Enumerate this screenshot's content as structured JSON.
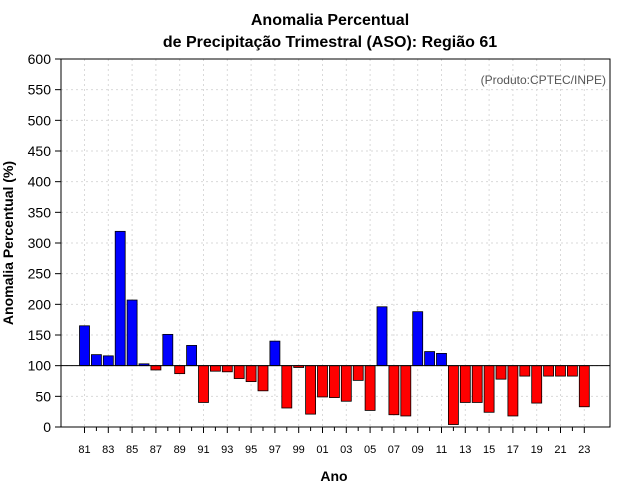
{
  "chart_data": {
    "type": "bar",
    "title": "Anomalia Percentual",
    "subtitle": "de Precipitação Trimestral (ASO): Região 61",
    "xlabel": "Ano",
    "ylabel": "Anomalia Percentual (%)",
    "annotation": "(Produto:CPTEC/INPE)",
    "ylim": [
      0,
      600
    ],
    "yticks": [
      0,
      50,
      100,
      150,
      200,
      250,
      300,
      350,
      400,
      450,
      500,
      550,
      600
    ],
    "baseline": 100,
    "grid": true,
    "colors": {
      "above": "#0000ff",
      "below": "#ff0000",
      "edge": "#000000",
      "grid": "#d9d9d9"
    },
    "categories": [
      "81",
      "82",
      "83",
      "84",
      "85",
      "86",
      "87",
      "88",
      "89",
      "90",
      "91",
      "92",
      "93",
      "94",
      "95",
      "96",
      "97",
      "98",
      "99",
      "00",
      "01",
      "02",
      "03",
      "04",
      "05",
      "06",
      "07",
      "08",
      "09",
      "10",
      "11",
      "12",
      "13",
      "14",
      "15",
      "16",
      "17",
      "18",
      "19",
      "20",
      "21",
      "22",
      "23"
    ],
    "tick_labels": [
      "81",
      "83",
      "85",
      "87",
      "89",
      "91",
      "93",
      "95",
      "97",
      "99",
      "01",
      "03",
      "05",
      "07",
      "09",
      "11",
      "13",
      "15",
      "17",
      "19",
      "21",
      "23"
    ],
    "values": [
      165,
      118,
      116,
      319,
      207,
      103,
      93,
      151,
      87,
      133,
      40,
      91,
      90,
      79,
      74,
      59,
      140,
      31,
      97,
      21,
      49,
      48,
      42,
      76,
      27,
      196,
      20,
      18,
      188,
      123,
      120,
      4,
      40,
      40,
      24,
      78,
      18,
      83,
      39,
      83,
      83,
      83,
      33
    ]
  }
}
